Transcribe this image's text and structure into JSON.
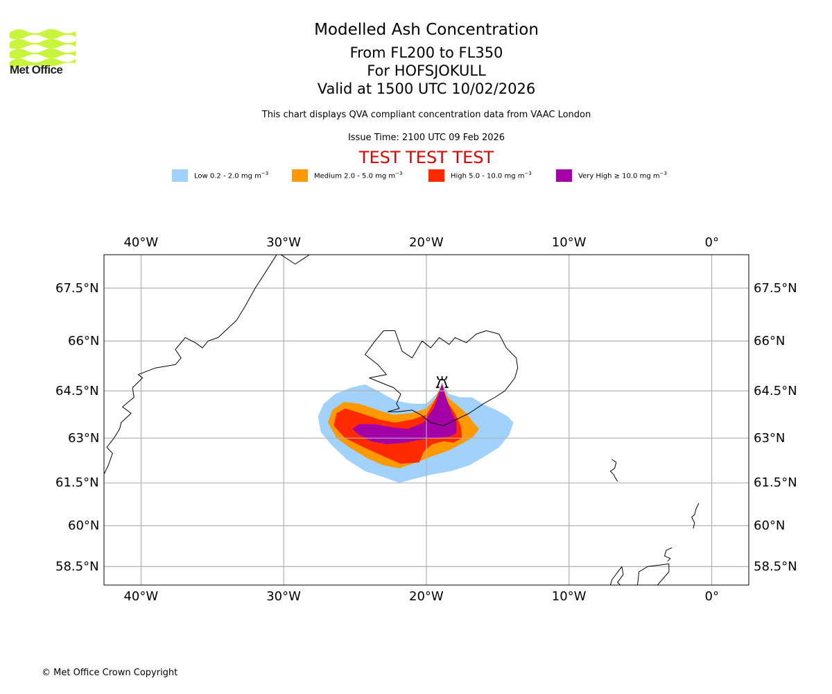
{
  "header": {
    "organisation": "Met Office",
    "title": "Modelled Ash Concentration",
    "levels": "From FL200 to FL350",
    "volcano": "For HOFSJOKULL",
    "valid": "Valid at 1500 UTC 10/02/2026",
    "description": "This chart displays QVA compliant concentration data from VAAC London",
    "issue_time": "Issue Time: 2100 UTC 09 Feb 2026",
    "test_banner": "TEST TEST TEST"
  },
  "colors": {
    "logo_green": "#c8f53c",
    "test_red": "#e00000",
    "gridline": "#b0b0b0"
  },
  "legend": [
    {
      "label": "Low 0.2 - 2.0 mg m",
      "unit_exp": "−3",
      "color": "#a0d2fc"
    },
    {
      "label": "Medium 2.0 - 5.0 mg m",
      "unit_exp": "−3",
      "color": "#ff9900"
    },
    {
      "label": "High 5.0 - 10.0 mg m",
      "unit_exp": "−3",
      "color": "#ff2a00"
    },
    {
      "label": "Very High ≥ 10.0 mg m",
      "unit_exp": "−3",
      "color": "#a400a8"
    }
  ],
  "map": {
    "lon_range": [
      -42.6,
      2.6
    ],
    "lat_range": [
      57.8,
      68.4
    ],
    "lon_ticks": [
      {
        "value": -40,
        "label": "40°W"
      },
      {
        "value": -30,
        "label": "30°W"
      },
      {
        "value": -20,
        "label": "20°W"
      },
      {
        "value": -10,
        "label": "10°W"
      },
      {
        "value": 0,
        "label": "0°"
      }
    ],
    "lat_ticks": [
      {
        "value": 67.5,
        "label": "67.5°N"
      },
      {
        "value": 66,
        "label": "66°N"
      },
      {
        "value": 64.5,
        "label": "64.5°N"
      },
      {
        "value": 63,
        "label": "63°N"
      },
      {
        "value": 61.5,
        "label": "61.5°N"
      },
      {
        "value": 60,
        "label": "60°N"
      },
      {
        "value": 58.5,
        "label": "58.5°N"
      }
    ],
    "volcano": {
      "name": "HOFSJOKULL",
      "lon": -18.9,
      "lat": 64.8
    },
    "ash_contours": [
      {
        "level": "low",
        "color": "#a0d2fc",
        "points": [
          [
            -27.6,
            63.7
          ],
          [
            -27.2,
            64.1
          ],
          [
            -26.4,
            64.4
          ],
          [
            -25.3,
            64.6
          ],
          [
            -24.3,
            64.7
          ],
          [
            -23.4,
            64.5
          ],
          [
            -22.2,
            64.2
          ],
          [
            -21.0,
            64.1
          ],
          [
            -20.0,
            64.1
          ],
          [
            -19.3,
            64.4
          ],
          [
            -18.9,
            64.7
          ],
          [
            -18.4,
            64.4
          ],
          [
            -17.6,
            64.3
          ],
          [
            -16.8,
            64.3
          ],
          [
            -16.1,
            64.1
          ],
          [
            -15.1,
            63.9
          ],
          [
            -14.3,
            63.7
          ],
          [
            -13.9,
            63.5
          ],
          [
            -14.2,
            63.1
          ],
          [
            -14.9,
            62.7
          ],
          [
            -15.9,
            62.4
          ],
          [
            -17.0,
            62.1
          ],
          [
            -18.3,
            61.9
          ],
          [
            -19.5,
            61.8
          ],
          [
            -20.8,
            61.65
          ],
          [
            -21.9,
            61.5
          ],
          [
            -23.0,
            61.7
          ],
          [
            -24.3,
            61.9
          ],
          [
            -25.6,
            62.3
          ],
          [
            -26.7,
            62.8
          ],
          [
            -27.4,
            63.2
          ]
        ]
      },
      {
        "level": "medium",
        "color": "#ff9900",
        "points": [
          [
            -26.9,
            63.5
          ],
          [
            -26.6,
            63.9
          ],
          [
            -25.8,
            64.15
          ],
          [
            -24.7,
            64.1
          ],
          [
            -23.4,
            63.9
          ],
          [
            -22.3,
            63.75
          ],
          [
            -21.1,
            63.8
          ],
          [
            -20.0,
            63.95
          ],
          [
            -19.3,
            64.3
          ],
          [
            -18.9,
            64.7
          ],
          [
            -18.5,
            64.3
          ],
          [
            -17.7,
            64.0
          ],
          [
            -17.2,
            63.8
          ],
          [
            -16.7,
            63.5
          ],
          [
            -16.3,
            63.3
          ],
          [
            -16.8,
            63.0
          ],
          [
            -17.6,
            62.8
          ],
          [
            -18.4,
            62.6
          ],
          [
            -19.6,
            62.4
          ],
          [
            -20.7,
            62.2
          ],
          [
            -21.9,
            62.0
          ],
          [
            -23.0,
            62.1
          ],
          [
            -24.2,
            62.35
          ],
          [
            -25.4,
            62.7
          ],
          [
            -26.3,
            63.0
          ]
        ]
      },
      {
        "level": "high",
        "color": "#ff2a00",
        "points": [
          [
            -26.5,
            63.4
          ],
          [
            -26.3,
            63.8
          ],
          [
            -25.7,
            63.95
          ],
          [
            -24.6,
            63.8
          ],
          [
            -23.3,
            63.6
          ],
          [
            -22.2,
            63.5
          ],
          [
            -21.0,
            63.6
          ],
          [
            -20.0,
            63.75
          ],
          [
            -19.4,
            64.2
          ],
          [
            -18.9,
            64.7
          ],
          [
            -18.6,
            64.2
          ],
          [
            -18.0,
            63.8
          ],
          [
            -17.6,
            63.4
          ],
          [
            -17.5,
            63.0
          ],
          [
            -18.1,
            62.85
          ],
          [
            -18.8,
            62.9
          ],
          [
            -19.6,
            62.8
          ],
          [
            -20.2,
            62.55
          ],
          [
            -20.5,
            62.2
          ],
          [
            -21.8,
            62.15
          ],
          [
            -23.0,
            62.4
          ],
          [
            -24.4,
            62.7
          ],
          [
            -25.7,
            63.0
          ]
        ]
      },
      {
        "level": "very_high",
        "color": "#a400a8",
        "points": [
          [
            -25.2,
            63.3
          ],
          [
            -24.7,
            63.45
          ],
          [
            -23.6,
            63.45
          ],
          [
            -22.4,
            63.35
          ],
          [
            -21.3,
            63.3
          ],
          [
            -20.2,
            63.5
          ],
          [
            -19.5,
            63.95
          ],
          [
            -19.1,
            64.4
          ],
          [
            -18.9,
            64.75
          ],
          [
            -18.7,
            64.4
          ],
          [
            -18.3,
            63.9
          ],
          [
            -17.9,
            63.5
          ],
          [
            -17.9,
            63.15
          ],
          [
            -18.4,
            63.05
          ],
          [
            -19.3,
            63.0
          ],
          [
            -20.4,
            62.95
          ],
          [
            -21.5,
            62.85
          ],
          [
            -22.8,
            62.8
          ],
          [
            -23.9,
            62.9
          ],
          [
            -24.7,
            63.1
          ]
        ]
      }
    ],
    "coastlines": [
      {
        "name": "greenland",
        "closed": false,
        "points": [
          [
            -42.6,
            61.8
          ],
          [
            -42.3,
            62.1
          ],
          [
            -42.0,
            62.5
          ],
          [
            -42.4,
            62.7
          ],
          [
            -41.9,
            63.0
          ],
          [
            -41.5,
            63.3
          ],
          [
            -41.4,
            63.5
          ],
          [
            -40.7,
            63.8
          ],
          [
            -41.3,
            64.0
          ],
          [
            -40.5,
            64.3
          ],
          [
            -40.6,
            64.6
          ],
          [
            -39.9,
            64.9
          ],
          [
            -40.2,
            65.0
          ],
          [
            -39.0,
            65.2
          ],
          [
            -37.6,
            65.3
          ],
          [
            -37.2,
            65.5
          ],
          [
            -37.6,
            65.75
          ],
          [
            -36.9,
            66.1
          ],
          [
            -36.2,
            65.95
          ],
          [
            -35.7,
            65.8
          ],
          [
            -35.3,
            66.0
          ],
          [
            -34.6,
            66.1
          ],
          [
            -33.3,
            66.6
          ],
          [
            -32.7,
            67.0
          ],
          [
            -32.0,
            67.5
          ],
          [
            -31.5,
            67.8
          ],
          [
            -31.0,
            68.1
          ],
          [
            -30.5,
            68.4
          ]
        ]
      },
      {
        "name": "greenland-north",
        "closed": false,
        "points": [
          [
            -30.2,
            68.4
          ],
          [
            -29.2,
            68.15
          ],
          [
            -28.6,
            68.3
          ],
          [
            -28.2,
            68.4
          ]
        ]
      },
      {
        "name": "iceland",
        "closed": true,
        "points": [
          [
            -22.7,
            63.85
          ],
          [
            -22.0,
            63.85
          ],
          [
            -21.0,
            63.9
          ],
          [
            -20.4,
            63.75
          ],
          [
            -19.7,
            63.5
          ],
          [
            -18.8,
            63.4
          ],
          [
            -17.9,
            63.6
          ],
          [
            -17.0,
            63.8
          ],
          [
            -16.0,
            64.1
          ],
          [
            -15.2,
            64.3
          ],
          [
            -14.5,
            64.5
          ],
          [
            -13.8,
            64.9
          ],
          [
            -13.6,
            65.2
          ],
          [
            -13.7,
            65.5
          ],
          [
            -14.4,
            65.8
          ],
          [
            -14.9,
            66.2
          ],
          [
            -15.8,
            66.3
          ],
          [
            -16.5,
            66.2
          ],
          [
            -17.2,
            65.95
          ],
          [
            -18.0,
            66.1
          ],
          [
            -18.4,
            65.9
          ],
          [
            -19.1,
            66.1
          ],
          [
            -19.7,
            65.8
          ],
          [
            -20.3,
            66.0
          ],
          [
            -21.0,
            65.5
          ],
          [
            -21.7,
            65.7
          ],
          [
            -22.2,
            66.3
          ],
          [
            -23.0,
            66.3
          ],
          [
            -23.6,
            66.0
          ],
          [
            -24.3,
            65.6
          ],
          [
            -23.4,
            65.3
          ],
          [
            -22.8,
            65.0
          ],
          [
            -24.0,
            64.9
          ],
          [
            -22.3,
            64.6
          ],
          [
            -21.8,
            64.4
          ],
          [
            -22.1,
            64.1
          ],
          [
            -21.9,
            63.95
          ]
        ]
      },
      {
        "name": "faroe",
        "closed": false,
        "points": [
          [
            -7.0,
            62.3
          ],
          [
            -6.7,
            62.2
          ],
          [
            -6.8,
            62.0
          ],
          [
            -7.1,
            61.9
          ],
          [
            -6.9,
            61.8
          ],
          [
            -6.6,
            61.55
          ]
        ]
      },
      {
        "name": "shetland",
        "closed": false,
        "points": [
          [
            -0.9,
            60.8
          ],
          [
            -1.1,
            60.6
          ],
          [
            -1.2,
            60.4
          ],
          [
            -1.4,
            60.3
          ],
          [
            -1.2,
            60.1
          ],
          [
            -1.3,
            59.9
          ]
        ]
      },
      {
        "name": "orkney",
        "closed": false,
        "points": [
          [
            -2.8,
            59.2
          ],
          [
            -3.2,
            59.1
          ],
          [
            -3.3,
            58.9
          ],
          [
            -2.9,
            58.8
          ],
          [
            -3.1,
            58.7
          ]
        ]
      },
      {
        "name": "scotland",
        "closed": false,
        "points": [
          [
            -5.2,
            57.8
          ],
          [
            -5.1,
            58.3
          ],
          [
            -4.5,
            58.5
          ],
          [
            -3.0,
            58.6
          ],
          [
            -3.0,
            58.3
          ],
          [
            -3.8,
            57.8
          ]
        ]
      },
      {
        "name": "lewis",
        "closed": false,
        "points": [
          [
            -7.1,
            57.8
          ],
          [
            -7.0,
            58.0
          ],
          [
            -6.3,
            58.5
          ],
          [
            -6.2,
            58.2
          ],
          [
            -6.6,
            57.9
          ],
          [
            -6.4,
            57.8
          ]
        ]
      }
    ]
  },
  "footer": {
    "copyright": "© Met Office Crown Copyright"
  }
}
